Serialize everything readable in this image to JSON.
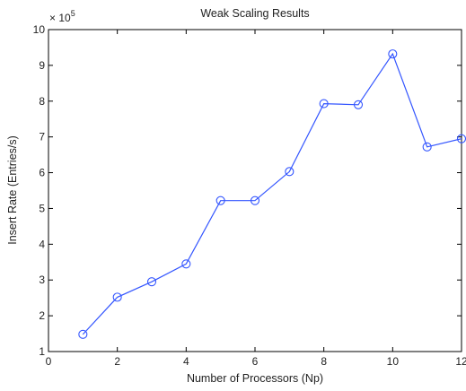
{
  "chart_data": {
    "type": "line",
    "title": "Weak Scaling Results",
    "xlabel": "Number of Processors (Np)",
    "ylabel": "Insert Rate (Entries/s)",
    "y_multiplier": "× 10",
    "y_multiplier_exponent": "5",
    "xlim": [
      0,
      12
    ],
    "ylim": [
      1,
      10
    ],
    "x_ticks": [
      "0",
      "2",
      "4",
      "6",
      "8",
      "10",
      "12"
    ],
    "y_ticks": [
      "1",
      "2",
      "3",
      "4",
      "5",
      "6",
      "7",
      "8",
      "9",
      "10"
    ],
    "grid": false,
    "marker": "circle",
    "line_color": "#3355ff",
    "series": [
      {
        "x": [
          1,
          2,
          3,
          4,
          5,
          6,
          7,
          8,
          9,
          10,
          11,
          12
        ],
        "values": [
          1.48,
          2.52,
          2.95,
          3.45,
          5.22,
          5.22,
          6.03,
          7.93,
          7.9,
          9.32,
          6.72,
          6.95
        ]
      }
    ]
  }
}
